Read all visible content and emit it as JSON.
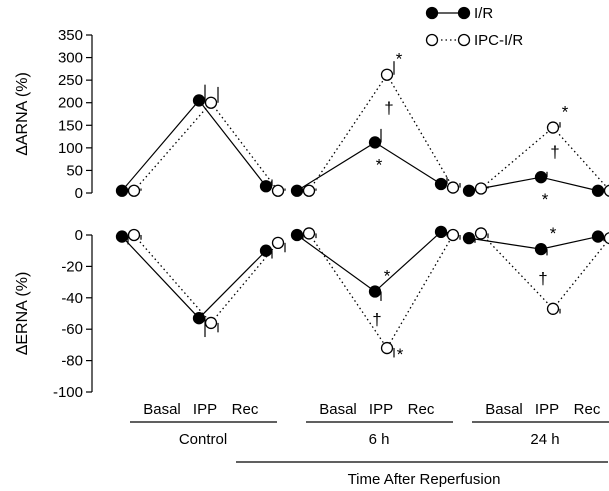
{
  "chart_data": {
    "type": "line",
    "legend": {
      "placement": "top-right",
      "entries": [
        {
          "label": "I/R",
          "marker": "filled-circle",
          "line": "solid"
        },
        {
          "label": "IPC-I/R",
          "marker": "open-circle",
          "line": "dotted"
        }
      ]
    },
    "groups": [
      {
        "label": "Control",
        "categories": [
          "Basal",
          "IPP",
          "Rec"
        ]
      },
      {
        "label": "6 h",
        "categories": [
          "Basal",
          "IPP",
          "Rec"
        ]
      },
      {
        "label": "24 h",
        "categories": [
          "Basal",
          "IPP",
          "Rec"
        ]
      }
    ],
    "group_caption": "Time After Reperfusion",
    "panels": [
      {
        "ylabel": "ΔARNA (%)",
        "ylim": [
          0,
          350
        ],
        "yticks": [
          0,
          50,
          100,
          150,
          200,
          250,
          300,
          350
        ],
        "series": [
          {
            "name": "I/R",
            "groups": [
              {
                "values": [
                  5,
                  205,
                  15
                ],
                "err": [
                  5,
                  35,
                  15
                ]
              },
              {
                "values": [
                  5,
                  112,
                  20
                ],
                "err": [
                  5,
                  30,
                  15
                ]
              },
              {
                "values": [
                  5,
                  35,
                  5
                ],
                "err": [
                  5,
                  12,
                  5
                ]
              }
            ]
          },
          {
            "name": "IPC-I/R",
            "groups": [
              {
                "values": [
                  5,
                  200,
                  5
                ],
                "err": [
                  5,
                  35,
                  5
                ]
              },
              {
                "values": [
                  5,
                  262,
                  12
                ],
                "err": [
                  5,
                  30,
                  10
                ]
              },
              {
                "values": [
                  10,
                  145,
                  5
                ],
                "err": [
                  5,
                  12,
                  5
                ]
              }
            ]
          }
        ],
        "annotations": [
          {
            "group": 1,
            "category": 1,
            "series": "IPC-I/R",
            "text": "*",
            "side": "above"
          },
          {
            "group": 1,
            "category": 1,
            "series": "IPC-I/R",
            "text": "†",
            "side": "below"
          },
          {
            "group": 1,
            "category": 1,
            "series": "I/R",
            "text": "*",
            "side": "below"
          },
          {
            "group": 2,
            "category": 1,
            "series": "IPC-I/R",
            "text": "*",
            "side": "above"
          },
          {
            "group": 2,
            "category": 1,
            "series": "IPC-I/R",
            "text": "†",
            "side": "below"
          },
          {
            "group": 2,
            "category": 1,
            "series": "I/R",
            "text": "*",
            "side": "below"
          }
        ]
      },
      {
        "ylabel": "ΔERNA (%)",
        "ylim": [
          -100,
          5
        ],
        "yticks": [
          0,
          -20,
          -40,
          -60,
          -80,
          -100
        ],
        "series": [
          {
            "name": "I/R",
            "groups": [
              {
                "values": [
                  -1,
                  -53,
                  -10
                ],
                "err": [
                  5,
                  12,
                  5
                ]
              },
              {
                "values": [
                  0,
                  -36,
                  2
                ],
                "err": [
                  3,
                  6,
                  3
                ]
              },
              {
                "values": [
                  -2,
                  -9,
                  -1
                ],
                "err": [
                  3,
                  4,
                  3
                ]
              }
            ]
          },
          {
            "name": "IPC-I/R",
            "groups": [
              {
                "values": [
                  0,
                  -56,
                  -5
                ],
                "err": [
                  3,
                  6,
                  6
                ]
              },
              {
                "values": [
                  1,
                  -72,
                  0
                ],
                "err": [
                  3,
                  6,
                  3
                ]
              },
              {
                "values": [
                  1,
                  -47,
                  -2
                ],
                "err": [
                  3,
                  3,
                  3
                ]
              }
            ]
          }
        ],
        "annotations": [
          {
            "group": 1,
            "category": 1,
            "series": "I/R",
            "text": "*",
            "side": "above"
          },
          {
            "group": 1,
            "category": 1,
            "series": "I/R",
            "text": "†",
            "side": "below"
          },
          {
            "group": 1,
            "category": 1,
            "series": "IPC-I/R",
            "text": "*",
            "side": "below-right"
          },
          {
            "group": 2,
            "category": 1,
            "series": "I/R",
            "text": "*",
            "side": "above"
          },
          {
            "group": 2,
            "category": 1,
            "series": "I/R",
            "text": "†",
            "side": "below"
          }
        ]
      }
    ]
  }
}
